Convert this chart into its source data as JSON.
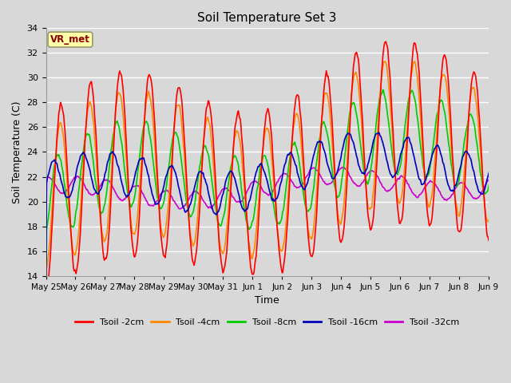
{
  "title": "Soil Temperature Set 3",
  "xlabel": "Time",
  "ylabel": "Soil Temperature (C)",
  "ylim": [
    14,
    34
  ],
  "yticks": [
    14,
    16,
    18,
    20,
    22,
    24,
    26,
    28,
    30,
    32,
    34
  ],
  "background_color": "#d8d8d8",
  "plot_bg_color": "#d8d8d8",
  "grid_color": "#ffffff",
  "colors": {
    "2cm": "#ff0000",
    "4cm": "#ff8800",
    "8cm": "#00cc00",
    "16cm": "#0000bb",
    "32cm": "#cc00cc"
  },
  "legend_labels": [
    "Tsoil -2cm",
    "Tsoil -4cm",
    "Tsoil -8cm",
    "Tsoil -16cm",
    "Tsoil -32cm"
  ],
  "vr_met_label": "VR_met",
  "tick_labels": [
    "May 25",
    "May 26",
    "May 27",
    "May 28",
    "May 29",
    "May 30",
    "May 31",
    "Jun 1",
    "Jun 2",
    "Jun 3",
    "Jun 4",
    "Jun 5",
    "Jun 6",
    "Jun 7",
    "Jun 8",
    "Jun 9"
  ],
  "n_days": 16,
  "pts_per_day": 48
}
